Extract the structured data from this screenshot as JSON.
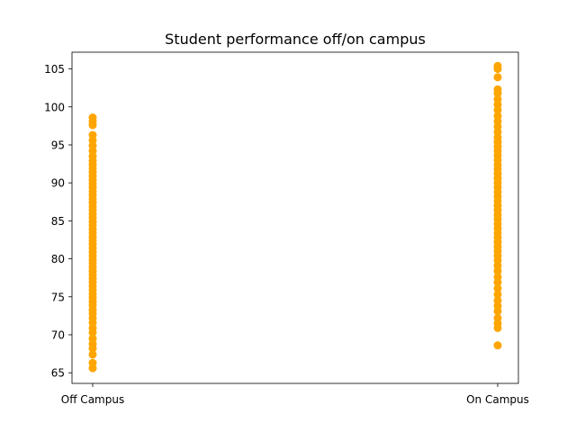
{
  "chart_data": {
    "type": "scatter",
    "title": "Student performance off/on campus",
    "xlabel": "",
    "ylabel": "",
    "categories": [
      "Off Campus",
      "On Campus"
    ],
    "yticks": [
      65,
      70,
      75,
      80,
      85,
      90,
      95,
      100,
      105
    ],
    "ylim": [
      63.6,
      107.2
    ],
    "grid": false,
    "marker_color": "#ffa500",
    "series": [
      {
        "category": "Off Campus",
        "values": [
          65.6,
          66.3,
          67.4,
          68.2,
          68.8,
          69.5,
          70.3,
          70.9,
          71.6,
          72.2,
          72.8,
          73.3,
          73.9,
          74.4,
          74.9,
          75.4,
          75.9,
          76.4,
          76.9,
          77.4,
          77.9,
          78.4,
          78.9,
          79.4,
          79.9,
          80.4,
          80.9,
          81.4,
          81.9,
          82.4,
          82.9,
          83.4,
          83.9,
          84.4,
          84.9,
          85.4,
          85.9,
          86.4,
          86.9,
          87.4,
          87.9,
          88.4,
          88.9,
          89.4,
          89.9,
          90.4,
          90.9,
          91.4,
          91.9,
          92.4,
          92.9,
          93.5,
          94.2,
          94.9,
          95.6,
          96.3,
          97.6,
          98.1,
          98.6
        ]
      },
      {
        "category": "On Campus",
        "values": [
          68.6,
          70.9,
          71.5,
          72.2,
          73.1,
          73.8,
          74.5,
          75.3,
          76.1,
          76.9,
          77.6,
          78.4,
          79.1,
          79.8,
          80.4,
          81.0,
          81.6,
          82.2,
          82.8,
          83.4,
          84.0,
          84.6,
          85.2,
          85.8,
          86.4,
          87.0,
          87.6,
          88.2,
          88.8,
          89.4,
          90.0,
          90.6,
          91.2,
          91.8,
          92.4,
          93.0,
          93.6,
          94.2,
          94.8,
          95.4,
          96.0,
          96.7,
          97.4,
          98.1,
          98.8,
          99.6,
          100.3,
          101.0,
          101.8,
          102.3,
          103.9,
          105.0,
          105.4
        ]
      }
    ]
  }
}
